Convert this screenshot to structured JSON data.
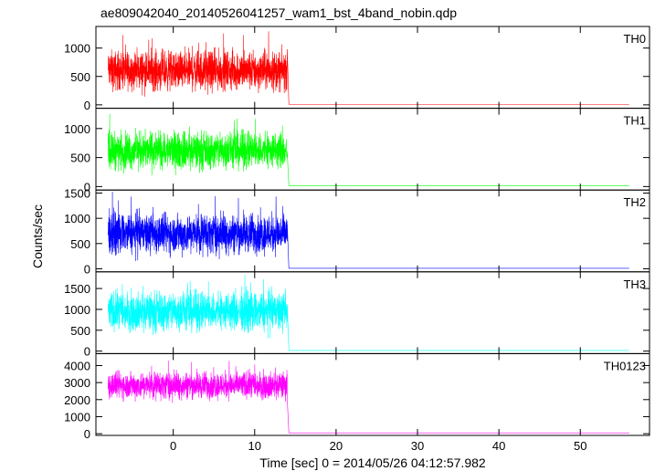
{
  "chart_data": {
    "type": "line",
    "title": "ae809042040_20140526041257_wam1_bst_4band_nobin.qdp",
    "xlabel": "Time [sec] 0 = 2014/05/26 04:12:57.982",
    "ylabel": "Counts/sec",
    "xlim": [
      -9.5,
      58.5
    ],
    "x_ticks": [
      0,
      10,
      20,
      30,
      40,
      50
    ],
    "x_tick_labels": [
      "0",
      "10",
      "20",
      "30",
      "40",
      "50"
    ],
    "burst_interval": [
      -8,
      14
    ],
    "data_end": 56,
    "panels": [
      {
        "name": "TH0",
        "color": "#ff0000",
        "ylim": [
          -60,
          1380
        ],
        "yticks": [
          0,
          500,
          1000
        ],
        "ytick_labels": [
          "0",
          "500",
          "1000"
        ],
        "mean": 600,
        "amplitude": 280,
        "spike_max": 1350,
        "after_level": 10
      },
      {
        "name": "TH1",
        "color": "#00ff00",
        "ylim": [
          -60,
          1350
        ],
        "yticks": [
          0,
          500,
          1000
        ],
        "ytick_labels": [
          "0",
          "500",
          "1000"
        ],
        "mean": 620,
        "amplitude": 260,
        "spike_max": 1300,
        "after_level": 15
      },
      {
        "name": "TH2",
        "color": "#0000ff",
        "ylim": [
          -60,
          1560
        ],
        "yticks": [
          0,
          500,
          1000,
          1500
        ],
        "ytick_labels": [
          "0",
          "500",
          "1000",
          "1500"
        ],
        "mean": 700,
        "amplitude": 320,
        "spike_max": 1550,
        "after_level": 10
      },
      {
        "name": "TH3",
        "color": "#00ffff",
        "ylim": [
          -60,
          1900
        ],
        "yticks": [
          0,
          500,
          1000,
          1500
        ],
        "ytick_labels": [
          "0",
          "500",
          "1000",
          "1500"
        ],
        "mean": 950,
        "amplitude": 380,
        "spike_max": 1850,
        "after_level": 15
      },
      {
        "name": "TH0123",
        "color": "#ff00ff",
        "ylim": [
          -100,
          4700
        ],
        "yticks": [
          0,
          1000,
          2000,
          3000,
          4000
        ],
        "ytick_labels": [
          "0",
          "1000",
          "2000",
          "3000",
          "4000"
        ],
        "mean": 2850,
        "amplitude": 650,
        "spike_max": 4500,
        "after_level": 50
      }
    ]
  }
}
